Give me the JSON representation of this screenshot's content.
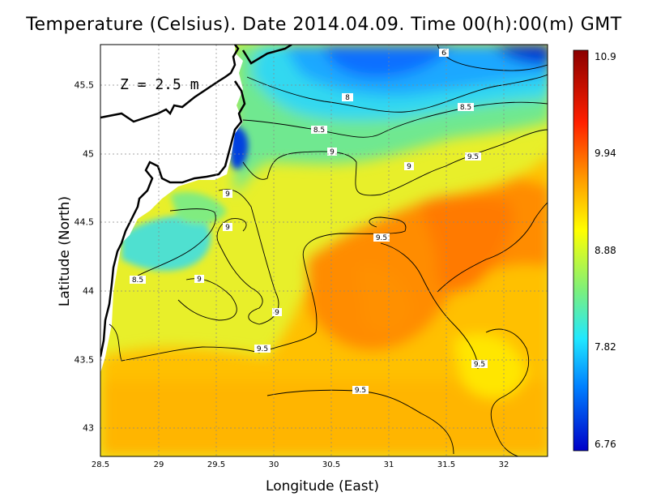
{
  "title": "Temperature (Celsius). Date 2014.04.09. Time 00(h):00(m) GMT",
  "depth_label": "Z = 2.5 m",
  "axes": {
    "xlabel": "Longitude (East)",
    "ylabel": "Latitude (North)",
    "xticks": [
      "28.5",
      "29",
      "29.5",
      "30",
      "30.5",
      "31",
      "31.5",
      "32"
    ],
    "yticks": [
      "45.5",
      "45",
      "44.5",
      "44",
      "43.5",
      "43"
    ]
  },
  "colorbar": {
    "ticks": [
      "10.9",
      "9.94",
      "8.88",
      "7.82",
      "6.76"
    ],
    "colors": [
      "#8b0000",
      "#ff2000",
      "#ff9a00",
      "#ffff00",
      "#7cf07c",
      "#20e8ff",
      "#0080ff",
      "#0000c8"
    ]
  },
  "contour_labels": [
    "6",
    "8",
    "8.5",
    "8.5",
    "9",
    "9",
    "9.5",
    "9",
    "9",
    "8.5",
    "9",
    "9",
    "9.5",
    "9.5",
    "9.5",
    "9.5"
  ],
  "chart_data": {
    "type": "heatmap",
    "title": "Temperature (Celsius). Date 2014.04.09. Time 00(h):00(m) GMT",
    "xlabel": "Longitude (East)",
    "ylabel": "Latitude (North)",
    "xlim": [
      28.5,
      32.4
    ],
    "ylim": [
      42.8,
      45.8
    ],
    "colorbar_range": [
      6.76,
      10.9
    ],
    "contour_levels": [
      6,
      8,
      8.5,
      9,
      9.5
    ]
  }
}
